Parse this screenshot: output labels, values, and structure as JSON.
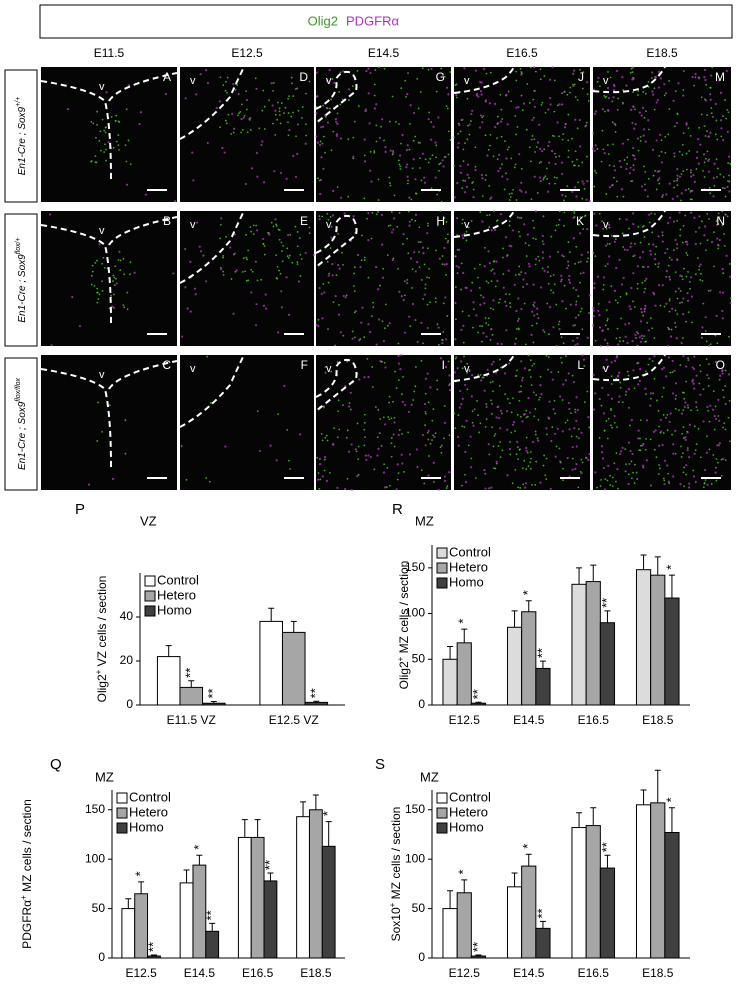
{
  "header": {
    "green": "Olig2",
    "magenta": "PDGFRα"
  },
  "columns": [
    "E11.5",
    "E12.5",
    "E14.5",
    "E16.5",
    "E18.5"
  ],
  "rows": [
    {
      "base": "En1-Cre ; Sox9",
      "sup": "+/+"
    },
    {
      "base": "En1-Cre ; Sox9",
      "sup": "flox/+"
    },
    {
      "base": "En1-Cre ; Sox9",
      "sup": "flox/flox"
    }
  ],
  "panels": [
    [
      {
        "letter": "A",
        "v": "v"
      },
      {
        "letter": "D",
        "v": "v"
      },
      {
        "letter": "G",
        "v": "v"
      },
      {
        "letter": "J",
        "v": "v"
      },
      {
        "letter": "M",
        "v": "v"
      }
    ],
    [
      {
        "letter": "B",
        "v": "v"
      },
      {
        "letter": "E",
        "v": "v"
      },
      {
        "letter": "H",
        "v": "v"
      },
      {
        "letter": "K",
        "v": "v"
      },
      {
        "letter": "N",
        "v": "v"
      }
    ],
    [
      {
        "letter": "C",
        "v": "v"
      },
      {
        "letter": "F",
        "v": "v"
      },
      {
        "letter": "I",
        "v": "v"
      },
      {
        "letter": "L",
        "v": "v"
      },
      {
        "letter": "O",
        "v": "v"
      }
    ]
  ],
  "chart_data": [
    {
      "type": "bar",
      "letter": "P",
      "annotation": "VZ",
      "ylabel": {
        "base": "Olig2",
        "sup": "+",
        "rest": " VZ cells / section"
      },
      "categories": [
        "E11.5 VZ",
        "E12.5 VZ"
      ],
      "series": [
        {
          "name": "Control",
          "color": "#ffffff",
          "values": [
            22,
            38
          ],
          "errors": [
            5,
            6
          ]
        },
        {
          "name": "Hetero",
          "color": "#a6a6a6",
          "values": [
            8,
            33
          ],
          "errors": [
            3,
            5
          ],
          "significance": [
            "**",
            null
          ]
        },
        {
          "name": "Homo",
          "color": "#404040",
          "values": [
            0.8,
            1.2
          ],
          "errors": [
            0.8,
            0.5
          ],
          "significance": [
            "**",
            "**"
          ]
        }
      ],
      "ylim": [
        0,
        60
      ],
      "yticks": [
        0,
        20,
        40
      ]
    },
    {
      "type": "bar",
      "letter": "R",
      "annotation": "MZ",
      "ylabel": {
        "base": "Olig2",
        "sup": "+",
        "rest": " MZ cells / section"
      },
      "categories": [
        "E12.5",
        "E14.5",
        "E16.5",
        "E18.5"
      ],
      "series": [
        {
          "name": "Control",
          "color": "#dcdcdc",
          "values": [
            50,
            85,
            132,
            148
          ],
          "errors": [
            14,
            18,
            18,
            16
          ]
        },
        {
          "name": "Hetero",
          "color": "#a6a6a6",
          "values": [
            68,
            102,
            135,
            142
          ],
          "errors": [
            15,
            12,
            18,
            20
          ],
          "significance": [
            "*",
            "*",
            null,
            null
          ]
        },
        {
          "name": "Homo",
          "color": "#404040",
          "values": [
            2,
            40,
            90,
            117
          ],
          "errors": [
            1,
            8,
            13,
            25
          ],
          "significance": [
            "**",
            "**",
            "**",
            "*"
          ]
        }
      ],
      "ylim": [
        0,
        175
      ],
      "yticks": [
        0,
        50,
        100,
        150
      ]
    },
    {
      "type": "bar",
      "letter": "Q",
      "annotation": "MZ",
      "ylabel": {
        "base": "PDGFRα",
        "sup": "+",
        "rest": " MZ cells / section"
      },
      "categories": [
        "E12.5",
        "E14.5",
        "E16.5",
        "E18.5"
      ],
      "series": [
        {
          "name": "Control",
          "color": "#ffffff",
          "values": [
            50,
            76,
            122,
            143
          ],
          "errors": [
            10,
            13,
            18,
            15
          ]
        },
        {
          "name": "Hetero",
          "color": "#a6a6a6",
          "values": [
            65,
            94,
            122,
            150
          ],
          "errors": [
            12,
            10,
            18,
            15
          ],
          "significance": [
            "*",
            "*",
            null,
            null
          ]
        },
        {
          "name": "Homo",
          "color": "#404040",
          "values": [
            2,
            27,
            78,
            113
          ],
          "errors": [
            1,
            8,
            8,
            25
          ],
          "significance": [
            "**",
            "**",
            "**",
            "*"
          ]
        }
      ],
      "ylim": [
        0,
        170
      ],
      "yticks": [
        0,
        50,
        100,
        150
      ]
    },
    {
      "type": "bar",
      "letter": "S",
      "annotation": "MZ",
      "ylabel": {
        "base": "Sox10",
        "sup": "+",
        "rest": " MZ cells / section"
      },
      "categories": [
        "E12.5",
        "E14.5",
        "E16.5",
        "E18.5"
      ],
      "series": [
        {
          "name": "Control",
          "color": "#ffffff",
          "values": [
            50,
            72,
            132,
            155
          ],
          "errors": [
            18,
            14,
            15,
            15
          ]
        },
        {
          "name": "Hetero",
          "color": "#a6a6a6",
          "values": [
            66,
            93,
            134,
            157
          ],
          "errors": [
            13,
            12,
            18,
            33
          ],
          "significance": [
            "*",
            "*",
            null,
            null
          ]
        },
        {
          "name": "Homo",
          "color": "#404040",
          "values": [
            2,
            30,
            91,
            127
          ],
          "errors": [
            1,
            7,
            13,
            25
          ],
          "significance": [
            "**",
            "**",
            "**",
            "*"
          ]
        }
      ],
      "ylim": [
        0,
        170
      ],
      "yticks": [
        0,
        50,
        100,
        150
      ]
    }
  ]
}
